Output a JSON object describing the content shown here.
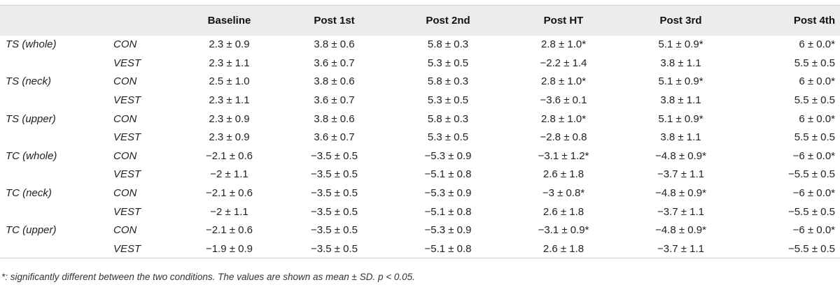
{
  "table": {
    "headers": [
      "",
      "",
      "Baseline",
      "Post 1st",
      "Post 2nd",
      "Post HT",
      "Post 3rd",
      "Post 4th"
    ],
    "rows": [
      {
        "variable": "TS (whole)",
        "condition": "CON",
        "values": [
          "2.3 ± 0.9",
          "3.8 ± 0.6",
          "5.8 ± 0.3",
          "2.8 ± 1.0*",
          "5.1 ± 0.9*",
          "6 ± 0.0*"
        ]
      },
      {
        "variable": "",
        "condition": "VEST",
        "values": [
          "2.3 ± 1.1",
          "3.6 ± 0.7",
          "5.3 ± 0.5",
          "−2.2 ± 1.4",
          "3.8 ± 1.1",
          "5.5 ± 0.5"
        ]
      },
      {
        "variable": "TS (neck)",
        "condition": "CON",
        "values": [
          "2.5 ± 1.0",
          "3.8 ± 0.6",
          "5.8 ± 0.3",
          "2.8 ± 1.0*",
          "5.1 ± 0.9*",
          "6 ± 0.0*"
        ]
      },
      {
        "variable": "",
        "condition": "VEST",
        "values": [
          "2.3 ± 1.1",
          "3.6 ± 0.7",
          "5.3 ± 0.5",
          "−3.6 ± 0.1",
          "3.8 ± 1.1",
          "5.5 ± 0.5"
        ]
      },
      {
        "variable": "TS (upper)",
        "condition": "CON",
        "values": [
          "2.3 ± 0.9",
          "3.8 ± 0.6",
          "5.8 ± 0.3",
          "2.8 ± 1.0*",
          "5.1 ± 0.9*",
          "6 ± 0.0*"
        ]
      },
      {
        "variable": "",
        "condition": "VEST",
        "values": [
          "2.3 ± 0.9",
          "3.6 ± 0.7",
          "5.3 ± 0.5",
          "−2.8 ± 0.8",
          "3.8 ± 1.1",
          "5.5 ± 0.5"
        ]
      },
      {
        "variable": "TC (whole)",
        "condition": "CON",
        "values": [
          "−2.1 ± 0.6",
          "−3.5 ± 0.5",
          "−5.3 ± 0.9",
          "−3.1 ± 1.2*",
          "−4.8 ± 0.9*",
          "−6 ± 0.0*"
        ]
      },
      {
        "variable": "",
        "condition": "VEST",
        "values": [
          "−2 ± 1.1",
          "−3.5 ± 0.5",
          "−5.1 ± 0.8",
          "2.6 ± 1.8",
          "−3.7 ± 1.1",
          "−5.5 ± 0.5"
        ]
      },
      {
        "variable": "TC (neck)",
        "condition": "CON",
        "values": [
          "−2.1 ± 0.6",
          "−3.5 ± 0.5",
          "−5.3 ± 0.9",
          "−3 ± 0.8*",
          "−4.8 ± 0.9*",
          "−6 ± 0.0*"
        ]
      },
      {
        "variable": "",
        "condition": "VEST",
        "values": [
          "−2 ± 1.1",
          "−3.5 ± 0.5",
          "−5.1 ± 0.8",
          "2.6 ± 1.8",
          "−3.7 ± 1.1",
          "−5.5 ± 0.5"
        ]
      },
      {
        "variable": "TC (upper)",
        "condition": "CON",
        "values": [
          "−2.1 ± 0.6",
          "−3.5 ± 0.5",
          "−5.3 ± 0.9",
          "−3.1 ± 0.9*",
          "−4.8 ± 0.9*",
          "−6 ± 0.0*"
        ]
      },
      {
        "variable": "",
        "condition": "VEST",
        "values": [
          "−1.9 ± 0.9",
          "−3.5 ± 0.5",
          "−5.1 ± 0.8",
          "2.6 ± 1.8",
          "−3.7 ± 1.1",
          "−5.5 ± 0.5"
        ]
      }
    ]
  },
  "footnote": "*: significantly different between the two conditions. The values are shown as mean ± SD. p < 0.05."
}
